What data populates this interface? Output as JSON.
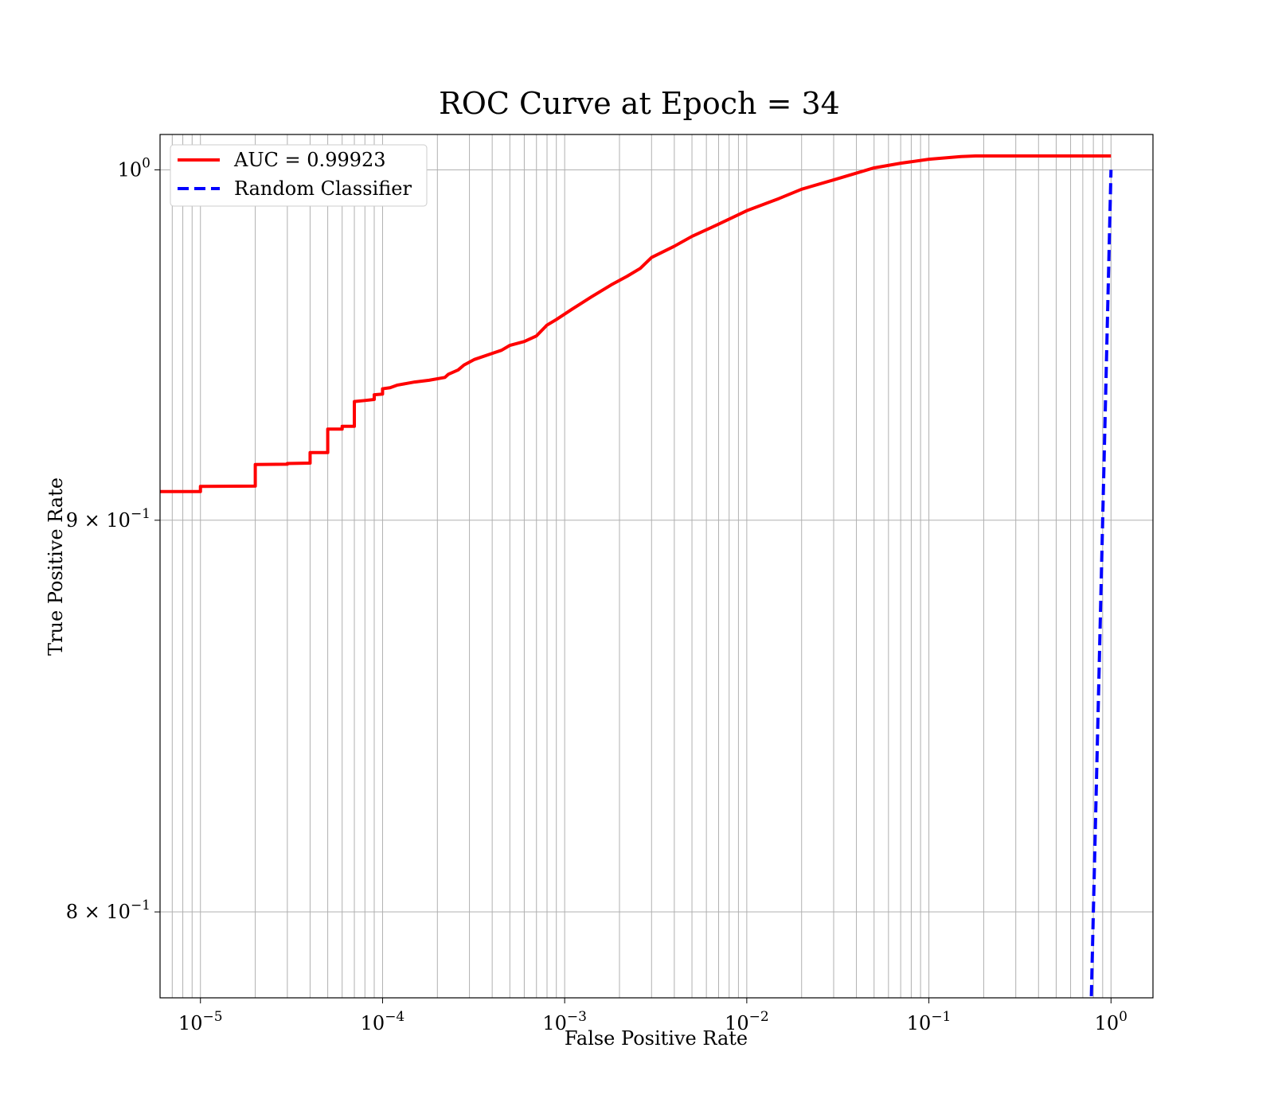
{
  "chart_data": {
    "type": "line",
    "title": "ROC Curve at Epoch = 34",
    "xlabel": "False Positive Rate",
    "ylabel": "True Positive Rate",
    "xscale": "log",
    "yscale": "log",
    "xlim": [
      6e-06,
      1.7
    ],
    "ylim": [
      0.7796,
      1.0107
    ],
    "grid": true,
    "legend_position": "upper-left",
    "x_ticks": [
      {
        "value": 1e-05,
        "base": "10",
        "exp": "−5"
      },
      {
        "value": 0.0001,
        "base": "10",
        "exp": "−4"
      },
      {
        "value": 0.001,
        "base": "10",
        "exp": "−3"
      },
      {
        "value": 0.01,
        "base": "10",
        "exp": "−2"
      },
      {
        "value": 0.1,
        "base": "10",
        "exp": "−1"
      },
      {
        "value": 1,
        "base": "10",
        "exp": "0"
      }
    ],
    "y_ticks": [
      {
        "value": 1.0,
        "base": "10",
        "exp": "0"
      },
      {
        "value": 0.9,
        "base": "9 × 10",
        "exp": "−1"
      },
      {
        "value": 0.8,
        "base": "8 × 10",
        "exp": "−1"
      }
    ],
    "series": [
      {
        "name": "AUC = 0.99923",
        "color": "#ff0000",
        "style": "solid",
        "points": [
          [
            6e-06,
            0.9078
          ],
          [
            1e-05,
            0.9078
          ],
          [
            1e-05,
            0.9092
          ],
          [
            2e-05,
            0.9093
          ],
          [
            2e-05,
            0.9152
          ],
          [
            3e-05,
            0.9153
          ],
          [
            3e-05,
            0.9155
          ],
          [
            4e-05,
            0.9156
          ],
          [
            4e-05,
            0.9185
          ],
          [
            5e-05,
            0.9185
          ],
          [
            5e-05,
            0.925
          ],
          [
            6e-05,
            0.925
          ],
          [
            6e-05,
            0.9258
          ],
          [
            7e-05,
            0.9258
          ],
          [
            7e-05,
            0.9327
          ],
          [
            8e-05,
            0.933
          ],
          [
            9e-05,
            0.9333
          ],
          [
            9e-05,
            0.9346
          ],
          [
            0.0001,
            0.9348
          ],
          [
            0.0001,
            0.9363
          ],
          [
            0.00011,
            0.9366
          ],
          [
            0.00012,
            0.9373
          ],
          [
            0.00015,
            0.9382
          ],
          [
            0.00018,
            0.9387
          ],
          [
            0.00022,
            0.9395
          ],
          [
            0.00023,
            0.9404
          ],
          [
            0.00026,
            0.9416
          ],
          [
            0.00028,
            0.943
          ],
          [
            0.00032,
            0.9446
          ],
          [
            0.0004,
            0.9463
          ],
          [
            0.00045,
            0.9472
          ],
          [
            0.0005,
            0.9486
          ],
          [
            0.0006,
            0.9497
          ],
          [
            0.0007,
            0.9513
          ],
          [
            0.0008,
            0.9544
          ],
          [
            0.0009,
            0.956
          ],
          [
            0.0011,
            0.959
          ],
          [
            0.0014,
            0.9625
          ],
          [
            0.0018,
            0.966
          ],
          [
            0.0022,
            0.9685
          ],
          [
            0.0026,
            0.9708
          ],
          [
            0.003,
            0.974
          ],
          [
            0.004,
            0.9773
          ],
          [
            0.005,
            0.9802
          ],
          [
            0.007,
            0.9838
          ],
          [
            0.01,
            0.9878
          ],
          [
            0.015,
            0.9914
          ],
          [
            0.02,
            0.9942
          ],
          [
            0.03,
            0.997
          ],
          [
            0.05,
            1.0006
          ],
          [
            0.07,
            1.002
          ],
          [
            0.1,
            1.0032
          ],
          [
            0.15,
            1.004
          ],
          [
            0.18,
            1.0042
          ],
          [
            1.0,
            1.0042
          ]
        ]
      },
      {
        "name": "Random Classifier",
        "color": "#0000ff",
        "style": "dashed",
        "points": [
          [
            0.78,
            0.78
          ],
          [
            1.0,
            1.0
          ]
        ]
      }
    ]
  }
}
